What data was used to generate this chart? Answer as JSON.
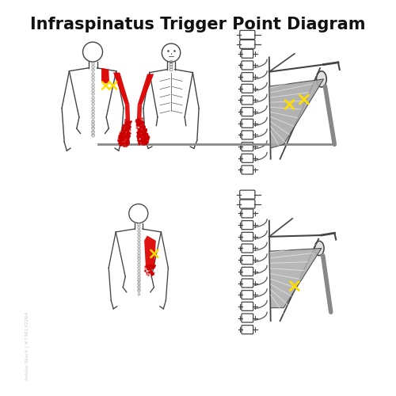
{
  "title": "Infraspinatus Trigger Point Diagram",
  "title_fontsize": 15,
  "title_fontweight": "bold",
  "bg_color": "#ffffff",
  "body_color": "#333333",
  "red_solid": "#dd0000",
  "red_stipple": "#cc0000",
  "yellow_color": "#ffdd00",
  "spine_color": "#444444",
  "muscle_dark": "#888888",
  "muscle_light": "#bbbbbb",
  "figsize": [
    5.0,
    5.0
  ],
  "dpi": 100
}
